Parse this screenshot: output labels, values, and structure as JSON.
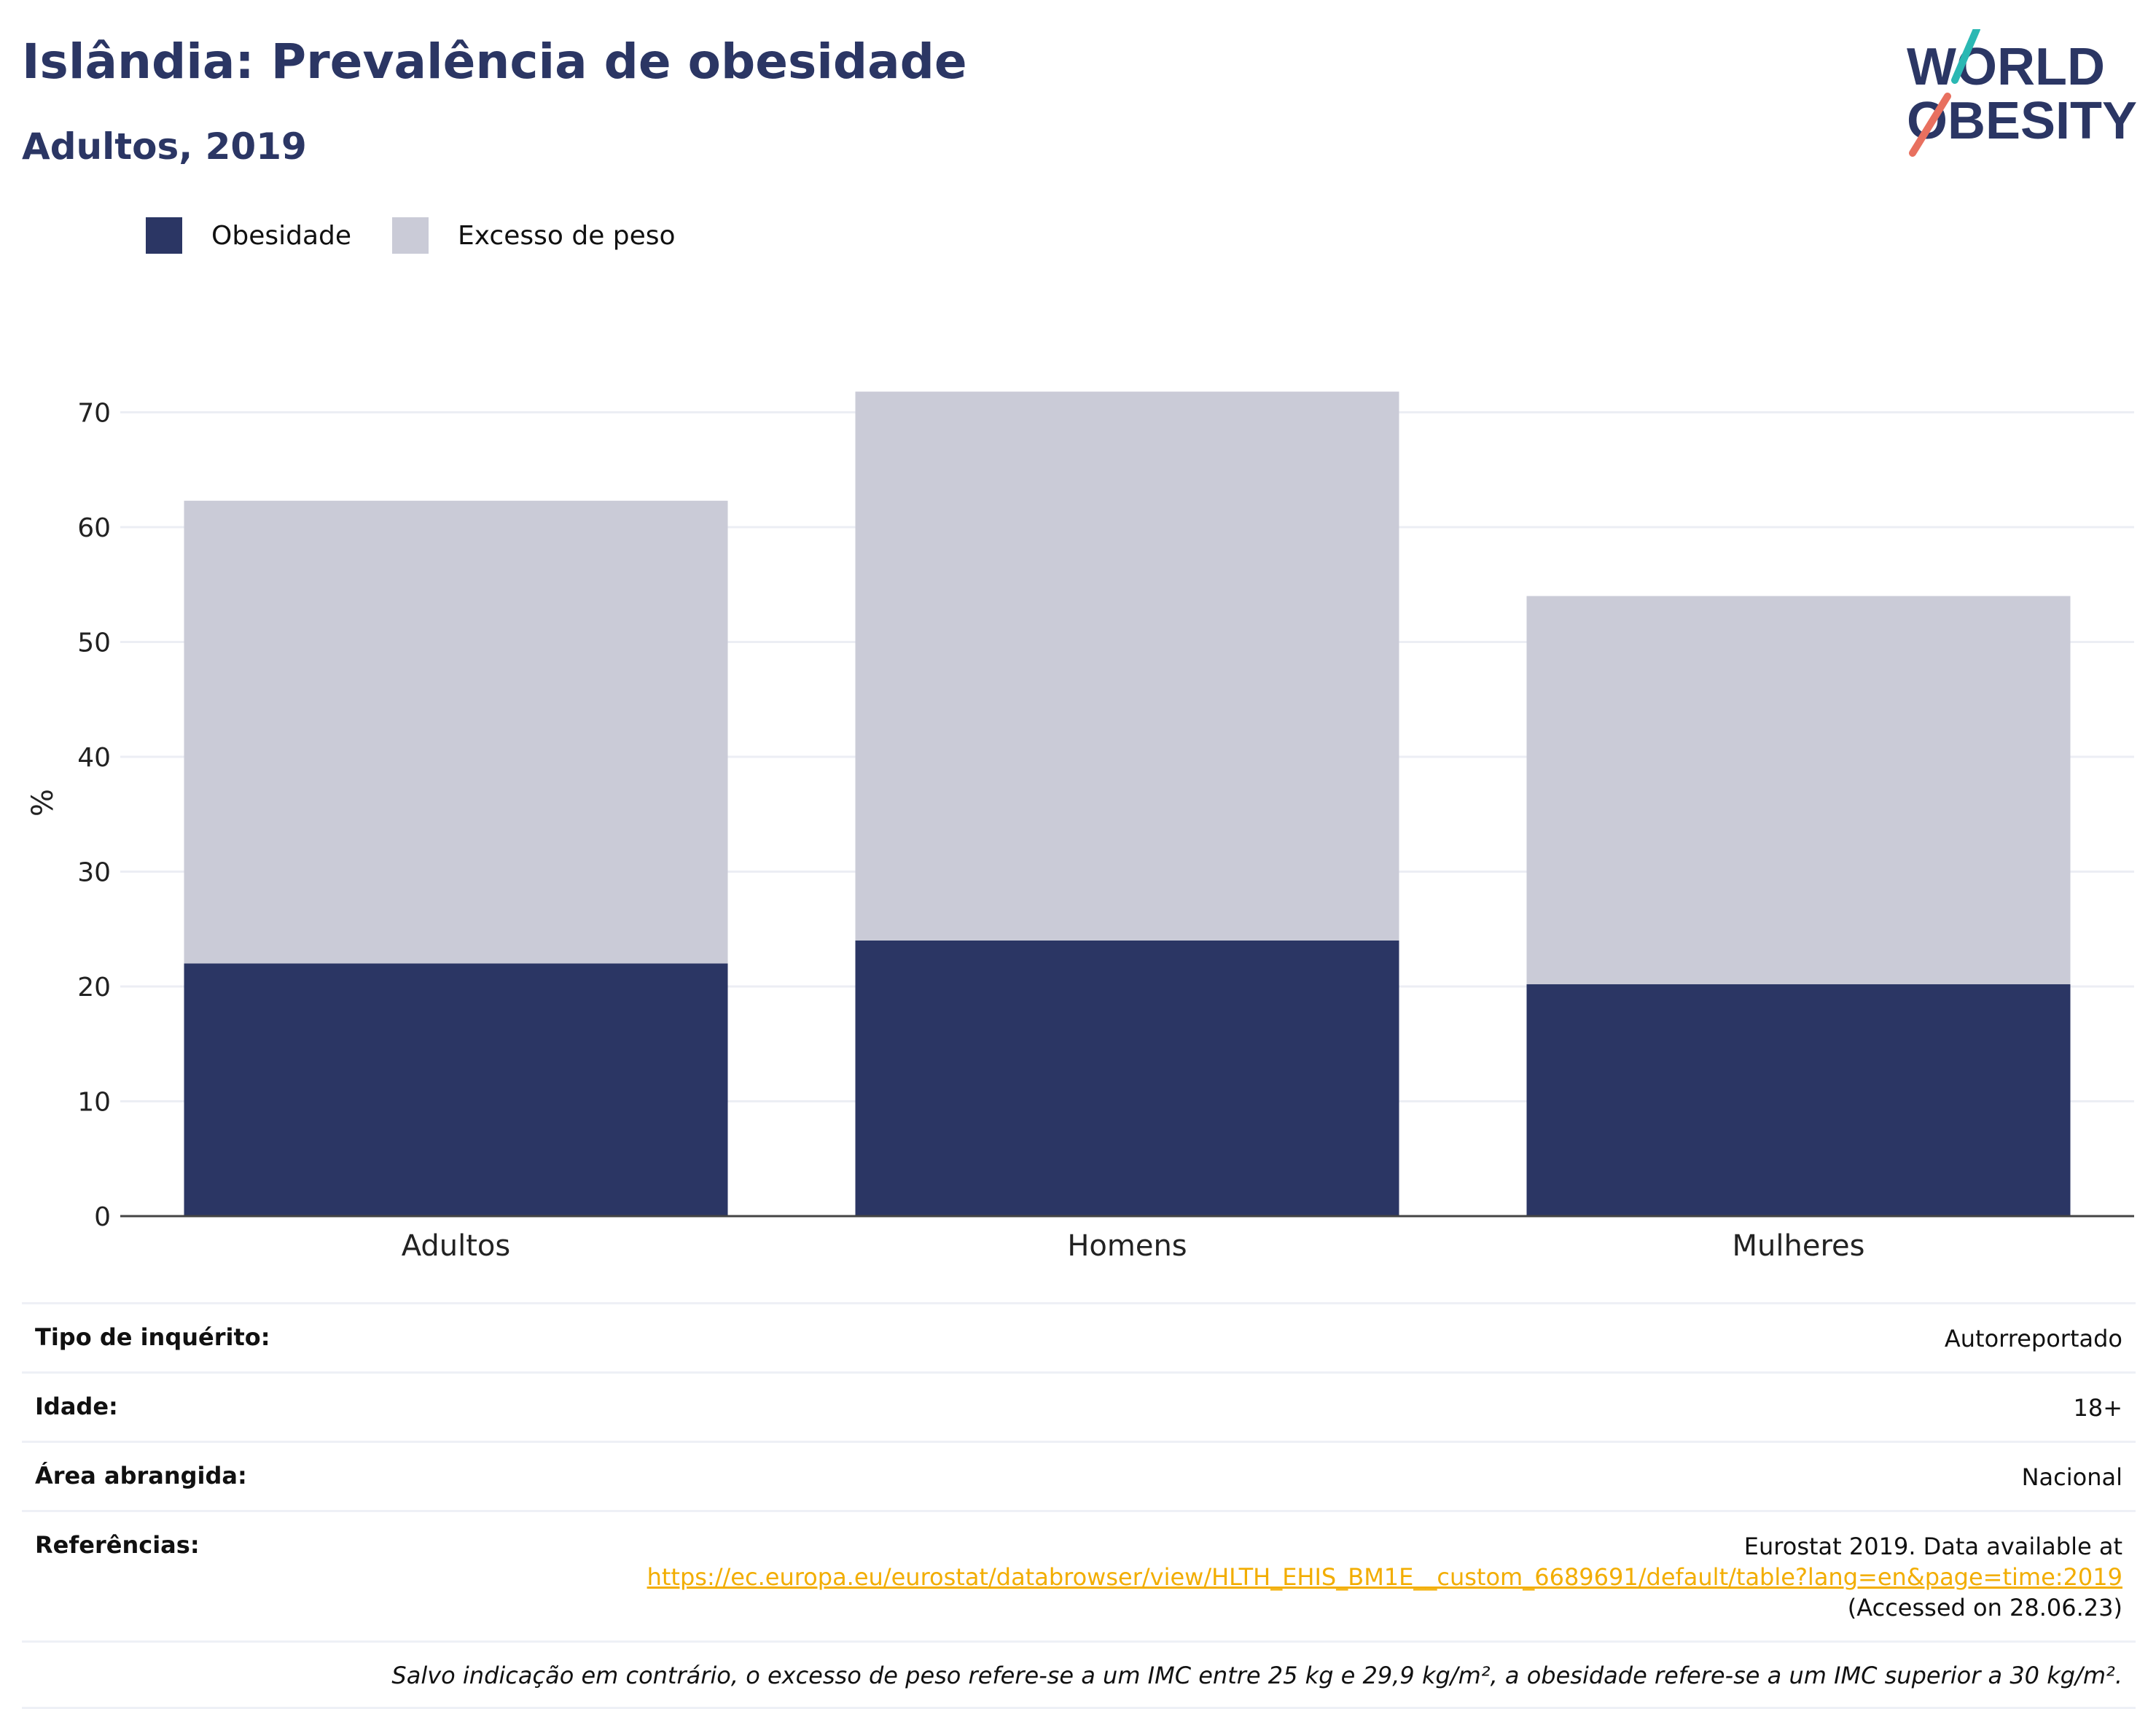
{
  "header": {
    "title": "Islândia: Prevalência de obesidade",
    "subtitle": "Adultos, 2019"
  },
  "logo": {
    "line1": "WORLD",
    "line2": "OBESITY",
    "colors": {
      "text": "#2b3664",
      "slash_top": "#2bb8b3",
      "slash_bottom": "#e8705f"
    }
  },
  "legend": [
    {
      "label": "Obesidade",
      "color": "#2b3664"
    },
    {
      "label": "Excesso de peso",
      "color": "#cacbd7"
    }
  ],
  "chart_data": {
    "type": "bar",
    "stacked": true,
    "categories": [
      "Adultos",
      "Homens",
      "Mulheres"
    ],
    "series": [
      {
        "name": "Obesidade",
        "values": [
          22.0,
          24.0,
          20.2
        ],
        "color": "#2b3664"
      },
      {
        "name": "Excesso de peso",
        "values": [
          40.3,
          47.8,
          33.8
        ],
        "color": "#cacbd7"
      }
    ],
    "ylabel": "%",
    "ylim": [
      0,
      72
    ],
    "yticks": [
      0,
      10,
      20,
      30,
      40,
      50,
      60,
      70
    ],
    "grid": true,
    "legend_position": "top-left"
  },
  "info": {
    "rows": [
      {
        "label": "Tipo de inquérito:",
        "value": "Autorreportado"
      },
      {
        "label": "Idade:",
        "value": "18+"
      },
      {
        "label": "Área abrangida:",
        "value": "Nacional"
      }
    ],
    "references": {
      "label": "Referências:",
      "line1": "Eurostat 2019. Data available at",
      "link": "https://ec.europa.eu/eurostat/databrowser/view/HLTH_EHIS_BM1E__custom_6689691/default/table?lang=en&page=time:2019",
      "line3": "(Accessed on 28.06.23)"
    },
    "note": "Salvo indicação em contrário, o excesso de peso refere-se a um IMC entre 25 kg e 29,9 kg/m², a obesidade refere-se a um IMC superior a 30 kg/m²."
  }
}
